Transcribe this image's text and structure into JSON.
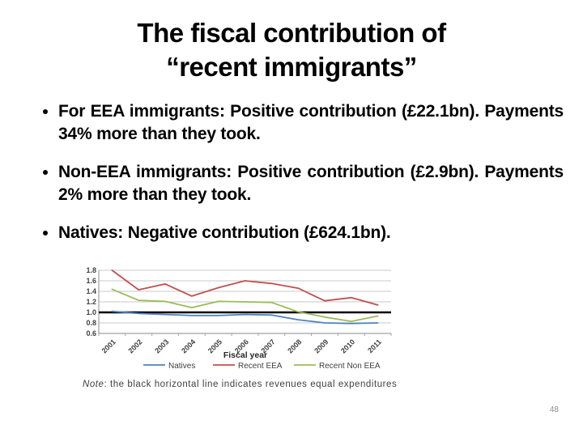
{
  "slide": {
    "title": {
      "line1": "The fiscal contribution of",
      "line2": "“recent immigrants”"
    },
    "bullets": [
      {
        "text": "For EEA immigrants: Positive contribution (£22.1bn). Payments 34% more than they took."
      },
      {
        "text": "Non-EEA immigrants: Positive contribution (£2.9bn). Payments 2% more than they took."
      },
      {
        "text": "Natives: Negative contribution (£624.1bn)."
      }
    ],
    "page_number": "48"
  },
  "chart_data": {
    "type": "line",
    "title": "",
    "xlabel": "Fiscal year",
    "ylabel": "",
    "x": [
      2001,
      2002,
      2003,
      2004,
      2005,
      2006,
      2007,
      2008,
      2009,
      2010,
      2011
    ],
    "ylim": [
      0.6,
      1.8
    ],
    "yticks": [
      1.8,
      1.6,
      1.4,
      1.2,
      1.0,
      0.8,
      0.6
    ],
    "grid": true,
    "legend_position": "bottom",
    "series": [
      {
        "name": "Natives",
        "color": "#4F81BD",
        "values": [
          1.02,
          0.98,
          0.96,
          0.94,
          0.94,
          0.96,
          0.95,
          0.86,
          0.8,
          0.79,
          0.8
        ]
      },
      {
        "name": "Recent EEA",
        "color": "#C0504D",
        "values": [
          1.8,
          1.43,
          1.54,
          1.31,
          1.47,
          1.6,
          1.55,
          1.46,
          1.22,
          1.28,
          1.14
        ]
      },
      {
        "name": "Recent Non EEA",
        "color": "#9BBB59",
        "values": [
          1.44,
          1.23,
          1.21,
          1.09,
          1.21,
          1.2,
          1.19,
          1.01,
          0.91,
          0.83,
          0.93
        ]
      }
    ],
    "reference_line": {
      "value": 1.0,
      "color": "#000000"
    },
    "note": {
      "prefix": "Note",
      "text": ": the black horizontal line indicates revenues equal expenditures"
    }
  }
}
